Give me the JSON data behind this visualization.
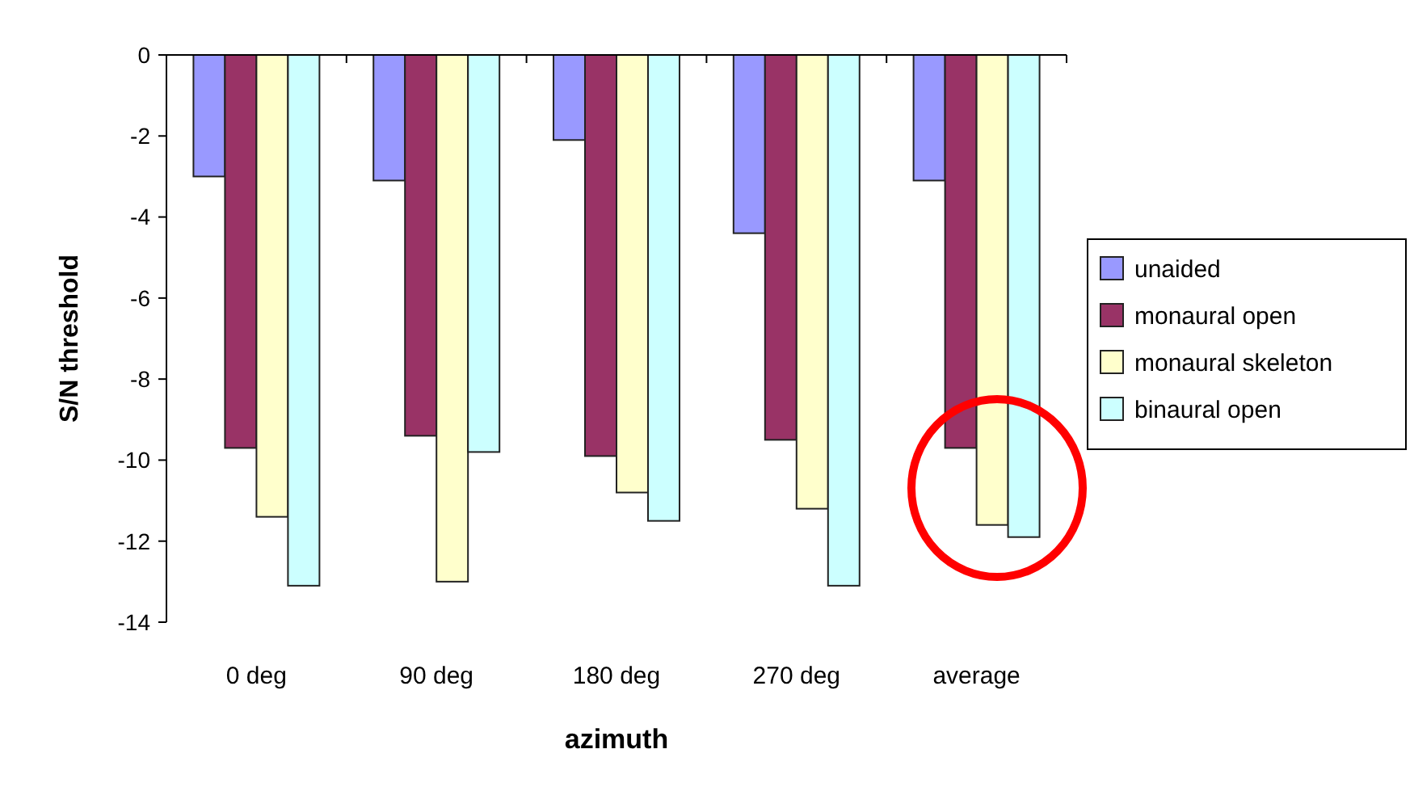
{
  "chart_data": {
    "type": "bar",
    "xlabel": "azimuth",
    "ylabel": "S/N threshold",
    "categories": [
      "0 deg",
      "90 deg",
      "180 deg",
      "270 deg",
      "average"
    ],
    "series": [
      {
        "name": "unaided",
        "color": "#9999ff",
        "values": [
          -3.0,
          -3.1,
          -2.1,
          -4.4,
          -3.1
        ]
      },
      {
        "name": "monaural open",
        "color": "#993366",
        "values": [
          -9.7,
          -9.4,
          -9.9,
          -9.5,
          -9.7
        ]
      },
      {
        "name": "monaural skeleton",
        "color": "#ffffcc",
        "values": [
          -11.4,
          -13.0,
          -10.8,
          -11.2,
          -11.6
        ]
      },
      {
        "name": "binaural open",
        "color": "#ccffff",
        "values": [
          -13.1,
          -9.8,
          -11.5,
          -13.1,
          -11.9
        ]
      }
    ],
    "ylim": [
      -14,
      0
    ],
    "yticks": [
      -14,
      -12,
      -10,
      -8,
      -6,
      -4,
      -2,
      0
    ],
    "grid": false,
    "legend": "right"
  }
}
